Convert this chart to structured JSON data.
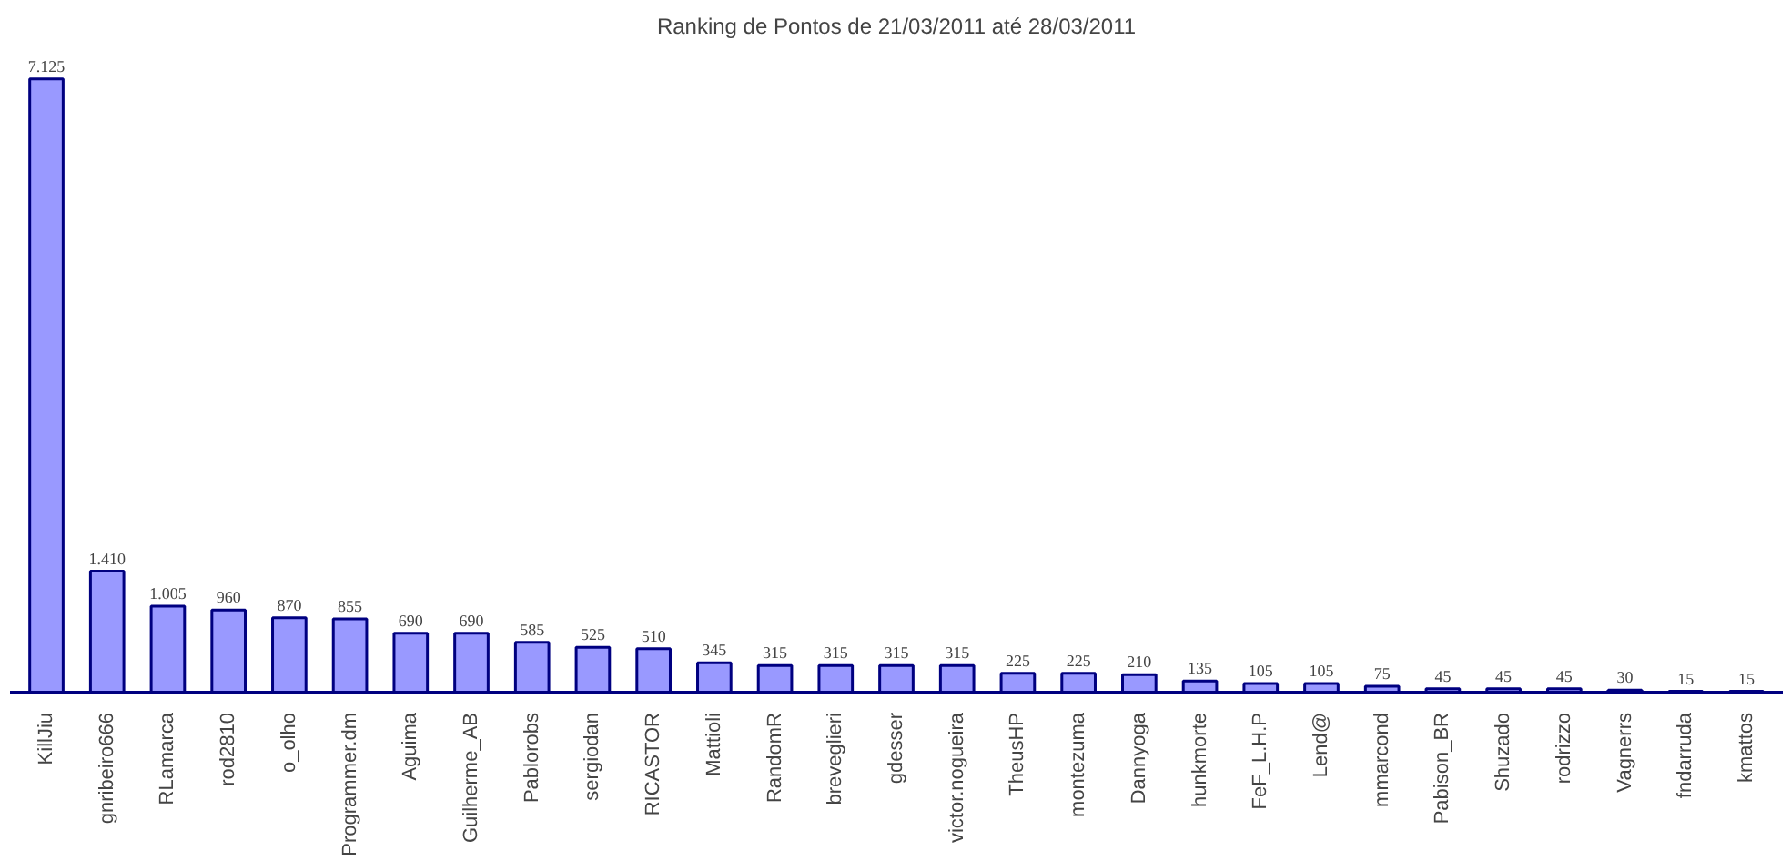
{
  "chart_data": {
    "type": "bar",
    "title": "Ranking de Pontos de 21/03/2011 até 28/03/2011",
    "categories": [
      "KillJiu",
      "gnribeiro666",
      "RLamarca",
      "rod2810",
      "o_olho",
      "Programmer.dm",
      "Aguima",
      "Guilherme_AB",
      "Pablorobs",
      "sergiodan",
      "RICASTOR",
      "Mattioli",
      "RandomR",
      "breveglieri",
      "gdesser",
      "victor.nogueira",
      "TheusHP",
      "montezuma",
      "Dannyoga",
      "hunkmorte",
      "FeF_L.H.P",
      "Lend@",
      "mmarcond",
      "Pabison_BR",
      "Shuzado",
      "rodrizzo",
      "Vagnerrs",
      "fndarruda",
      "kmattos"
    ],
    "values": [
      7125,
      1410,
      1005,
      960,
      870,
      855,
      690,
      690,
      585,
      525,
      510,
      345,
      315,
      315,
      315,
      315,
      225,
      225,
      210,
      135,
      105,
      105,
      75,
      45,
      45,
      45,
      30,
      15,
      15
    ],
    "value_labels": [
      "7.125",
      "1.410",
      "1.005",
      "960",
      "870",
      "855",
      "690",
      "690",
      "585",
      "525",
      "510",
      "345",
      "315",
      "315",
      "315",
      "315",
      "225",
      "225",
      "210",
      "135",
      "105",
      "105",
      "75",
      "45",
      "45",
      "45",
      "30",
      "15",
      "15"
    ],
    "color": "#9999ff"
  }
}
